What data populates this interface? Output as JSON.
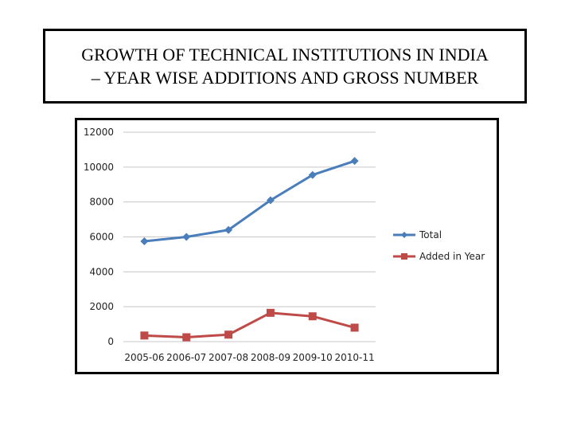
{
  "title": {
    "line1": "GROWTH OF TECHNICAL INSTITUTIONS IN INDIA",
    "line2": "– YEAR WISE ADDITIONS AND GROSS NUMBER"
  },
  "chart_data": {
    "type": "line",
    "categories": [
      "2005-06",
      "2006-07",
      "2007-08",
      "2008-09",
      "2009-10",
      "2010-11"
    ],
    "series": [
      {
        "name": "Total",
        "values": [
          5750,
          6000,
          6400,
          8100,
          9550,
          10350
        ],
        "color": "#4a7ebb",
        "marker": "diamond"
      },
      {
        "name": "Added in Year",
        "values": [
          350,
          250,
          400,
          1650,
          1450,
          800
        ],
        "color": "#be4b48",
        "marker": "square"
      }
    ],
    "yticks": [
      0,
      2000,
      4000,
      6000,
      8000,
      10000,
      12000
    ],
    "ylim": [
      0,
      12000
    ],
    "grid": true,
    "legend_position": "right"
  }
}
